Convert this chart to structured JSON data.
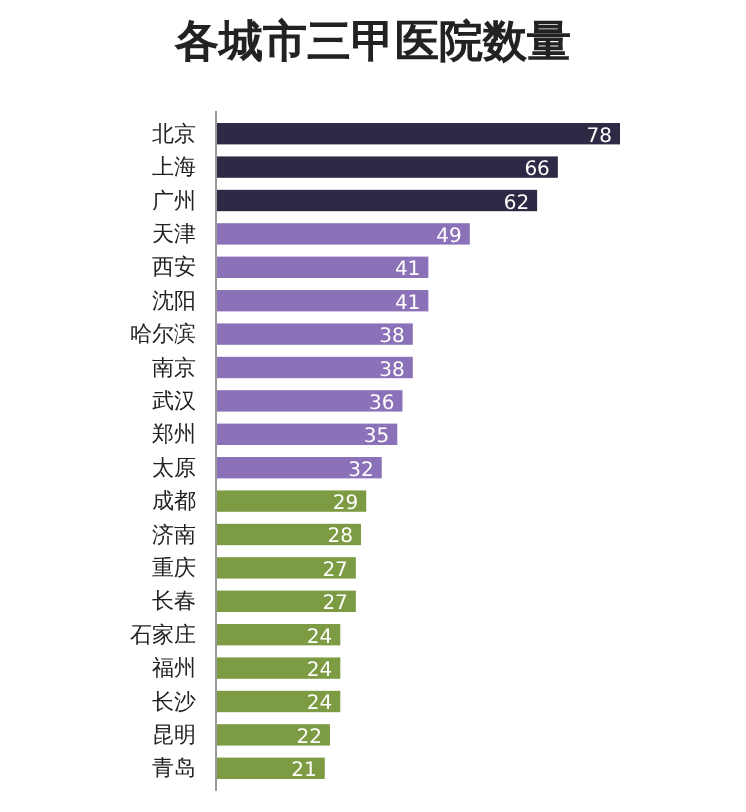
{
  "chart_data": {
    "type": "bar",
    "orientation": "horizontal",
    "title": "各城市三甲医院数量",
    "categories": [
      "北京",
      "上海",
      "广州",
      "天津",
      "西安",
      "沈阳",
      "哈尔滨",
      "南京",
      "武汉",
      "郑州",
      "太原",
      "成都",
      "济南",
      "重庆",
      "长春",
      "石家庄",
      "福州",
      "长沙",
      "昆明",
      "青岛"
    ],
    "values": [
      78,
      66,
      62,
      49,
      41,
      41,
      38,
      38,
      36,
      35,
      32,
      29,
      28,
      27,
      27,
      24,
      24,
      24,
      22,
      21
    ],
    "colors": [
      "#2e2a45",
      "#2e2a45",
      "#2e2a45",
      "#8b72b8",
      "#8b72b8",
      "#8b72b8",
      "#8b72b8",
      "#8b72b8",
      "#8b72b8",
      "#8b72b8",
      "#8b72b8",
      "#7d9b42",
      "#7d9b42",
      "#7d9b42",
      "#7d9b42",
      "#7d9b42",
      "#7d9b42",
      "#7d9b42",
      "#7d9b42",
      "#7d9b42"
    ],
    "data_labels": true
  }
}
